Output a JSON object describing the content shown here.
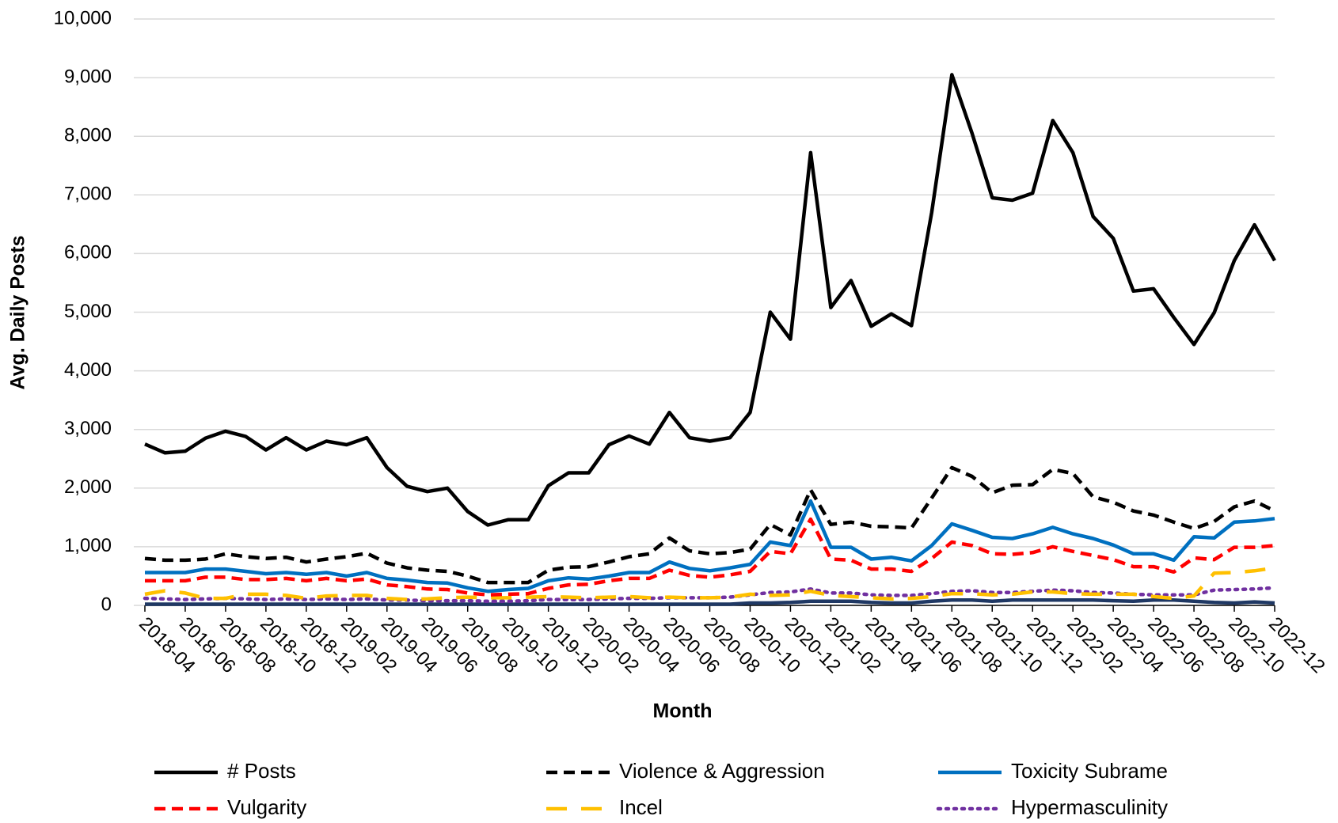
{
  "chart_data": {
    "type": "line",
    "x_label": "Month",
    "y_label": "Avg. Daily Posts",
    "categories": [
      "2018-04",
      null,
      "2018-06",
      null,
      "2018-08",
      null,
      "2018-10",
      null,
      "2018-12",
      null,
      "2019-02",
      null,
      "2019-04",
      null,
      "2019-06",
      null,
      "2019-08",
      null,
      "2019-10",
      null,
      "2019-12",
      null,
      "2020-02",
      null,
      "2020-04",
      null,
      "2020-06",
      null,
      "2020-08",
      null,
      "2020-10",
      null,
      "2020-12",
      null,
      "2021-02",
      null,
      "2021-04",
      null,
      "2021-06",
      null,
      "2021-08",
      null,
      "2021-10",
      null,
      "2021-12",
      null,
      "2022-02",
      null,
      "2022-04",
      null,
      "2022-06",
      null,
      "2022-08",
      null,
      "2022-10",
      null,
      "2022-12"
    ],
    "ylim": [
      0,
      10000
    ],
    "yticks": [
      0,
      {
        "value": 1000,
        "label": "1,000"
      },
      {
        "value": 2000,
        "label": "2,000"
      },
      {
        "value": 3000,
        "label": "3,000"
      },
      {
        "value": 4000,
        "label": "4,000"
      },
      {
        "value": 5000,
        "label": "5,000"
      },
      {
        "value": 6000,
        "label": "6,000"
      },
      {
        "value": 7000,
        "label": "7,000"
      },
      {
        "value": 8000,
        "label": "8,000"
      },
      {
        "value": 9000,
        "label": "9,000"
      },
      {
        "value": 10000,
        "label": "10,000"
      }
    ],
    "grid": true,
    "legend": "bottom",
    "series": [
      {
        "name": "# Posts",
        "color": "#000000",
        "style": "solid",
        "values": [
          2750,
          2600,
          2630,
          2850,
          2970,
          2880,
          2650,
          2860,
          2650,
          2800,
          2740,
          2860,
          2350,
          2030,
          1940,
          2000,
          1600,
          1370,
          1460,
          1460,
          2040,
          2260,
          2260,
          2740,
          2890,
          2750,
          3290,
          2860,
          2800,
          2860,
          3290,
          5000,
          4540,
          7720,
          5080,
          5540,
          4760,
          4970,
          4770,
          6700,
          9050,
          8050,
          6950,
          6910,
          7030,
          8270,
          7720,
          6630,
          6260,
          5360,
          5400,
          4910,
          4450,
          4990,
          5880,
          6490,
          5880
        ]
      },
      {
        "name": "Violence & Aggression",
        "color": "#000000",
        "style": "dashed",
        "values": [
          800,
          770,
          770,
          790,
          880,
          830,
          800,
          820,
          740,
          790,
          830,
          890,
          720,
          640,
          600,
          580,
          500,
          390,
          390,
          390,
          600,
          650,
          660,
          740,
          830,
          880,
          1150,
          930,
          880,
          900,
          960,
          1380,
          1200,
          1970,
          1380,
          1420,
          1350,
          1340,
          1320,
          1830,
          2350,
          2200,
          1920,
          2050,
          2060,
          2320,
          2250,
          1850,
          1760,
          1610,
          1540,
          1420,
          1310,
          1430,
          1680,
          1780,
          1610
        ]
      },
      {
        "name": "Toxicity Subrame",
        "color": "#0070c0",
        "style": "solid",
        "values": [
          560,
          560,
          560,
          620,
          620,
          580,
          540,
          560,
          530,
          560,
          500,
          560,
          460,
          430,
          390,
          380,
          300,
          240,
          270,
          290,
          420,
          470,
          450,
          500,
          560,
          560,
          740,
          630,
          590,
          640,
          700,
          1080,
          1020,
          1780,
          990,
          990,
          790,
          820,
          760,
          1020,
          1390,
          1280,
          1160,
          1140,
          1220,
          1330,
          1220,
          1140,
          1030,
          880,
          880,
          770,
          1170,
          1150,
          1420,
          1440,
          1480
        ]
      },
      {
        "name": "Vulgarity",
        "color": "#ff0000",
        "style": "dashed",
        "values": [
          420,
          420,
          420,
          480,
          480,
          440,
          440,
          460,
          420,
          460,
          420,
          450,
          350,
          320,
          280,
          270,
          210,
          180,
          190,
          200,
          290,
          350,
          360,
          420,
          460,
          460,
          600,
          510,
          480,
          520,
          580,
          920,
          880,
          1470,
          790,
          770,
          620,
          620,
          580,
          800,
          1080,
          1020,
          880,
          870,
          900,
          1000,
          920,
          850,
          780,
          660,
          660,
          570,
          810,
          780,
          990,
          990,
          1020
        ]
      },
      {
        "name": "Incel",
        "color": "#ffc000",
        "style": "longdash",
        "values": [
          190,
          250,
          210,
          120,
          120,
          190,
          190,
          170,
          120,
          160,
          170,
          170,
          120,
          100,
          110,
          130,
          140,
          130,
          130,
          140,
          150,
          140,
          130,
          140,
          150,
          130,
          140,
          130,
          130,
          140,
          190,
          170,
          180,
          240,
          170,
          150,
          130,
          110,
          120,
          150,
          200,
          200,
          180,
          190,
          230,
          230,
          200,
          190,
          190,
          190,
          150,
          120,
          160,
          550,
          560,
          590,
          640
        ]
      },
      {
        "name": "Hypermasculinity",
        "color": "#7030a0",
        "style": "dotted",
        "values": [
          120,
          110,
          100,
          110,
          120,
          110,
          100,
          110,
          100,
          110,
          100,
          110,
          90,
          90,
          80,
          80,
          80,
          70,
          70,
          80,
          100,
          100,
          100,
          110,
          120,
          120,
          130,
          130,
          130,
          140,
          180,
          220,
          230,
          280,
          210,
          210,
          180,
          170,
          170,
          200,
          240,
          250,
          220,
          220,
          240,
          260,
          250,
          220,
          210,
          190,
          180,
          180,
          180,
          260,
          270,
          280,
          300
        ]
      },
      {
        "color": "#1f3864",
        "style": "solid",
        "values": [
          20,
          20,
          20,
          20,
          20,
          20,
          20,
          20,
          20,
          20,
          20,
          20,
          20,
          20,
          20,
          20,
          20,
          20,
          20,
          20,
          20,
          20,
          20,
          20,
          20,
          20,
          20,
          20,
          20,
          20,
          40,
          40,
          50,
          70,
          70,
          70,
          50,
          40,
          40,
          70,
          90,
          90,
          70,
          90,
          90,
          90,
          90,
          90,
          80,
          70,
          90,
          90,
          70,
          50,
          40,
          60,
          40
        ]
      }
    ]
  }
}
